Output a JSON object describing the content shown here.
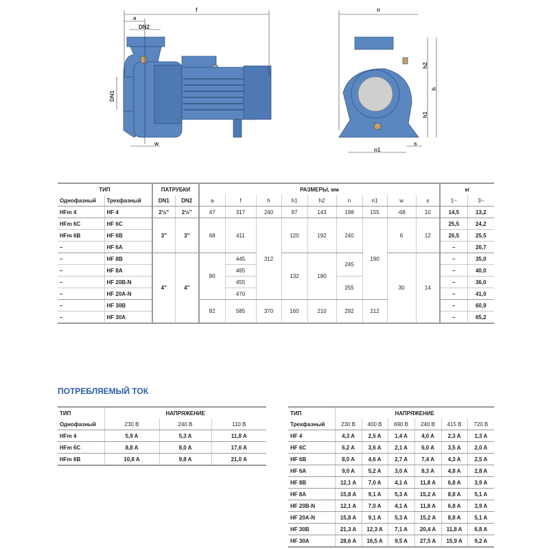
{
  "drawing": {
    "labels": {
      "f": "f",
      "a": "a",
      "dn2": "DN2",
      "dn1": "DN1",
      "w": "w",
      "n": "n",
      "h": "h",
      "h1": "h1",
      "h2": "h2",
      "n1": "n1",
      "s": "s"
    },
    "pump_color": "#5b86c0"
  },
  "main_table": {
    "headers": {
      "type": "ТИП",
      "ports": "ПАТРУБКИ",
      "dims": "РАЗМЕРЫ, мм",
      "kg": "кг",
      "single": "Однофазный",
      "three": "Трехфазный",
      "dn1": "DN1",
      "dn2": "DN2",
      "a": "a",
      "f": "f",
      "h": "h",
      "h1": "h1",
      "h2": "h2",
      "n": "n",
      "n1": "n1",
      "w": "w",
      "s": "s",
      "w1": "1~",
      "w3": "3~"
    },
    "single": [
      "HFm 4",
      "HFm 6C",
      "HFm 6B",
      "–",
      "–",
      "–",
      "–",
      "–",
      "–",
      "–"
    ],
    "three": [
      "HF 4",
      "HF 6C",
      "HF 6B",
      "HF 6A",
      "HF 8B",
      "HF 8A",
      "HF 20B-N",
      "HF 20A-N",
      "HF 30B",
      "HF 30A"
    ],
    "dn": [
      "2½\"",
      "3\"",
      "4\""
    ],
    "a": [
      "47",
      "68",
      "80",
      "82"
    ],
    "f": [
      "317",
      "411",
      "445",
      "465",
      "455",
      "470",
      "585"
    ],
    "h": [
      "240",
      "312",
      "370"
    ],
    "h1": [
      "97",
      "120",
      "132",
      "160"
    ],
    "h2": [
      "143",
      "192",
      "180",
      "210"
    ],
    "n": [
      "198",
      "240",
      "245",
      "255",
      "292"
    ],
    "n1": [
      "155",
      "190",
      "212"
    ],
    "w": [
      "-68",
      "6",
      "30"
    ],
    "s": [
      "10",
      "12",
      "14"
    ],
    "kg1": [
      "14,5",
      "25,5",
      "26,5",
      "–",
      "–",
      "–",
      "–",
      "–",
      "–",
      "–"
    ],
    "kg3": [
      "13,2",
      "24,2",
      "25,5",
      "26,7",
      "35,0",
      "40,0",
      "36,0",
      "41,0",
      "60,9",
      "65,2"
    ]
  },
  "current": {
    "title": "ПОТРЕБЛЯЕМЫЙ ТОК",
    "single": {
      "type": "ТИП",
      "voltage": "НАПРЯЖЕНИЕ",
      "col": "Однофазный",
      "volts": [
        "230 В",
        "240 В",
        "110 В"
      ],
      "rows": [
        {
          "model": "HFm 4",
          "values": [
            "5,9 A",
            "5,3 A",
            "11,8 A"
          ]
        },
        {
          "model": "HFm 6C",
          "values": [
            "8,8 A",
            "8,0 A",
            "17,6 A"
          ]
        },
        {
          "model": "HFm 6B",
          "values": [
            "10,8 A",
            "9,8 A",
            "21,0 A"
          ]
        }
      ]
    },
    "three": {
      "type": "ТИП",
      "voltage": "НАПРЯЖЕНИЕ",
      "col": "Трехфазный",
      "volts": [
        "230 В",
        "400 В",
        "690 В",
        "240 В",
        "415 В",
        "720 В"
      ],
      "rows": [
        {
          "model": "HF 4",
          "values": [
            "4,3 A",
            "2,5 A",
            "1,4 A",
            "4,0 A",
            "2,3 A",
            "1,3 A"
          ]
        },
        {
          "model": "HF 6C",
          "values": [
            "6,2 A",
            "3,6 A",
            "2,1 A",
            "6,0 A",
            "3,5 A",
            "2,0 A"
          ]
        },
        {
          "model": "HF 6B",
          "values": [
            "8,0 A",
            "4,6 A",
            "2,7 A",
            "7,4 A",
            "4,3 A",
            "2,5 A"
          ]
        },
        {
          "model": "HF 6A",
          "values": [
            "9,0 A",
            "5,2 A",
            "3,0 A",
            "8,3 A",
            "4,8 A",
            "2,8 A"
          ]
        },
        {
          "model": "HF 8B",
          "values": [
            "12,1 A",
            "7,0 A",
            "4,1 A",
            "11,8 A",
            "6,8 A",
            "3,9 A"
          ]
        },
        {
          "model": "HF 8A",
          "values": [
            "15,8 A",
            "9,1 A",
            "5,3 A",
            "15,2 A",
            "8,8 A",
            "5,1 A"
          ]
        },
        {
          "model": "HF 20B-N",
          "values": [
            "12,1 A",
            "7,0 A",
            "4,1 A",
            "11,8 A",
            "6,8 A",
            "3,9 A"
          ]
        },
        {
          "model": "HF 20A-N",
          "values": [
            "15,8 A",
            "9,1 A",
            "5,3 A",
            "15,2 A",
            "8,8 A",
            "5,1 A"
          ]
        },
        {
          "model": "HF 30B",
          "values": [
            "21,3 A",
            "12,3 A",
            "7,1 A",
            "20,4 A",
            "11,8 A",
            "6,8 A"
          ]
        },
        {
          "model": "HF 30A",
          "values": [
            "28,6 A",
            "16,5 A",
            "9,5 A",
            "27,5 A",
            "15,9 A",
            "9,2 A"
          ]
        }
      ]
    }
  }
}
